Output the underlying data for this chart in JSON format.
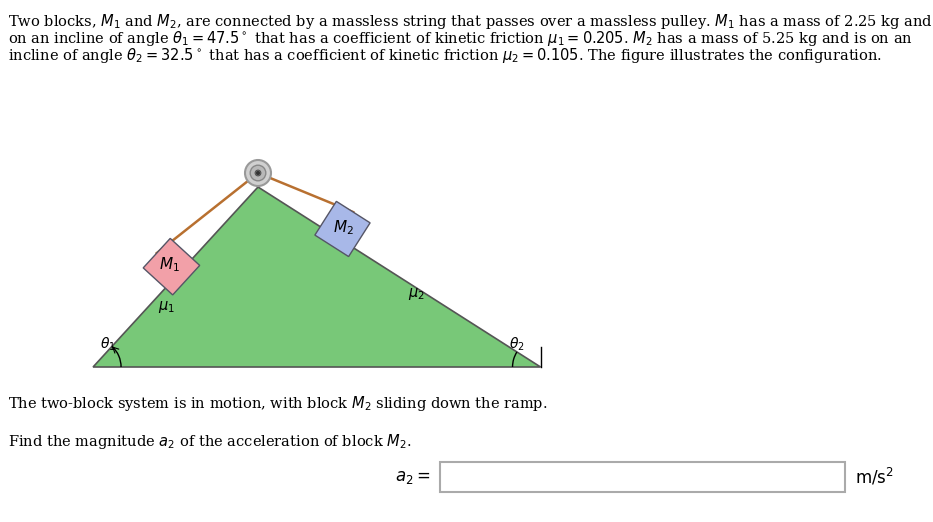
{
  "line1": "Two blocks, $M_1$ and $M_2$, are connected by a massless string that passes over a massless pulley. $M_1$ has a mass of 2.25 kg and is",
  "line2": "on an incline of angle $\\theta_1 = 47.5^\\circ$ that has a coefficient of kinetic friction $\\mu_1 = 0.205$. $M_2$ has a mass of 5.25 kg and is on an",
  "line3": "incline of angle $\\theta_2 = 32.5^\\circ$ that has a coefficient of kinetic friction $\\mu_2 = 0.105$. The figure illustrates the configuration.",
  "motion_text": "The two-block system is in motion, with block $M_2$ sliding down the ramp.",
  "find_text": "Find the magnitude $a_2$ of the acceleration of block $M_2$.",
  "triangle_color": "#78c878",
  "triangle_edge_color": "#555555",
  "m1_color": "#f2a0a8",
  "m2_color": "#a8b8e8",
  "string_color": "#b87030",
  "theta1_deg": 47.5,
  "theta2_deg": 32.5,
  "background_color": "#ffffff",
  "font_size_text": 10.5,
  "fig_width": 9.33,
  "fig_height": 5.22
}
